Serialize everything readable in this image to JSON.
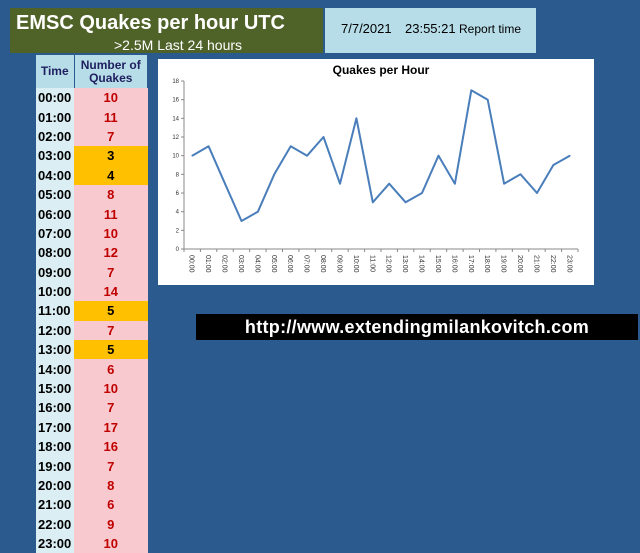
{
  "header": {
    "title": "EMSC Quakes per hour UTC",
    "subtitle": ">2.5M Last 24 hours",
    "report_date": "7/7/2021",
    "report_time": "23:55:21",
    "report_label": "Report time"
  },
  "table": {
    "col_time": "Time",
    "col_count_line1": "Number of",
    "col_count_line2": "Quakes",
    "rows": [
      {
        "time": "00:00",
        "count": "10",
        "hl": false
      },
      {
        "time": "01:00",
        "count": "11",
        "hl": false
      },
      {
        "time": "02:00",
        "count": "7",
        "hl": false
      },
      {
        "time": "03:00",
        "count": "3",
        "hl": true
      },
      {
        "time": "04:00",
        "count": "4",
        "hl": true
      },
      {
        "time": "05:00",
        "count": "8",
        "hl": false
      },
      {
        "time": "06:00",
        "count": "11",
        "hl": false
      },
      {
        "time": "07:00",
        "count": "10",
        "hl": false
      },
      {
        "time": "08:00",
        "count": "12",
        "hl": false
      },
      {
        "time": "09:00",
        "count": "7",
        "hl": false
      },
      {
        "time": "10:00",
        "count": "14",
        "hl": false
      },
      {
        "time": "11:00",
        "count": "5",
        "hl": true
      },
      {
        "time": "12:00",
        "count": "7",
        "hl": false
      },
      {
        "time": "13:00",
        "count": "5",
        "hl": true
      },
      {
        "time": "14:00",
        "count": "6",
        "hl": false
      },
      {
        "time": "15:00",
        "count": "10",
        "hl": false
      },
      {
        "time": "16:00",
        "count": "7",
        "hl": false
      },
      {
        "time": "17:00",
        "count": "17",
        "hl": false
      },
      {
        "time": "18:00",
        "count": "16",
        "hl": false
      },
      {
        "time": "19:00",
        "count": "7",
        "hl": false
      },
      {
        "time": "20:00",
        "count": "8",
        "hl": false
      },
      {
        "time": "21:00",
        "count": "6",
        "hl": false
      },
      {
        "time": "22:00",
        "count": "9",
        "hl": false
      },
      {
        "time": "23:00",
        "count": "10",
        "hl": false
      }
    ]
  },
  "website": "http://www.extendingmilankovitch.com",
  "colors": {
    "background": "#2a5a8e",
    "line": "#4a7ebb",
    "highlight": "#ffc000",
    "count_bg": "#f8c9cf",
    "count_text": "#c00000"
  },
  "chart_data": {
    "type": "line",
    "title": "Quakes per Hour",
    "x": [
      "00:00",
      "01:00",
      "02:00",
      "03:00",
      "04:00",
      "05:00",
      "06:00",
      "07:00",
      "08:00",
      "09:00",
      "10:00",
      "11:00",
      "12:00",
      "13:00",
      "14:00",
      "15:00",
      "16:00",
      "17:00",
      "18:00",
      "19:00",
      "20:00",
      "21:00",
      "22:00",
      "23:00"
    ],
    "series": [
      {
        "values": [
          10,
          11,
          7,
          3,
          4,
          8,
          11,
          10,
          12,
          7,
          14,
          5,
          7,
          5,
          6,
          10,
          7,
          17,
          16,
          7,
          8,
          6,
          9,
          10
        ]
      }
    ],
    "ylim": [
      0,
      18
    ],
    "yticks": [
      0,
      2,
      4,
      6,
      8,
      10,
      12,
      14,
      16,
      18
    ],
    "grid": false,
    "legend": "none"
  }
}
